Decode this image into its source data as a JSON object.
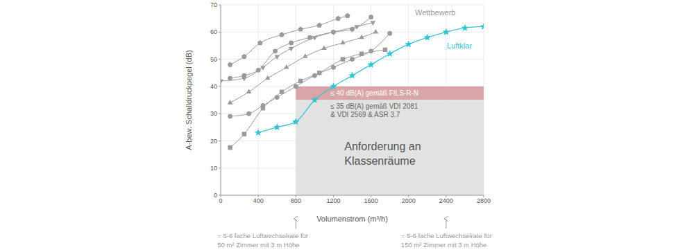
{
  "chart_data": {
    "type": "line",
    "x_label": "Volumenstrom (m³/h)",
    "y_label": "A-bew. Schalldruckpegel (dB)",
    "xlim": [
      0,
      2800
    ],
    "xticks": [
      0,
      400,
      800,
      1200,
      1600,
      2000,
      2400,
      2800
    ],
    "ylim": [
      0,
      70
    ],
    "yticks": [
      0,
      10,
      20,
      30,
      40,
      50,
      60,
      70
    ],
    "grid": true,
    "competitor_label": "Wettbewerb",
    "series": [
      {
        "color": "#9a9a9a",
        "marker": "pentagon",
        "x": [
          100,
          250,
          420,
          650,
          850,
          1050,
          1250,
          1350
        ],
        "values": [
          48,
          51,
          56,
          59,
          61,
          62.5,
          65,
          66
        ]
      },
      {
        "color": "#9a9a9a",
        "marker": "circle",
        "x": [
          100,
          250,
          400,
          580,
          750,
          950,
          1200,
          1400,
          1600
        ],
        "values": [
          43,
          44,
          46,
          53,
          56,
          58,
          60,
          61,
          65.5
        ]
      },
      {
        "color": "#9a9a9a",
        "marker": "triangle-down",
        "x": [
          0,
          250,
          450,
          600,
          750,
          1000,
          1200,
          1450,
          1620
        ],
        "values": [
          42,
          43,
          47,
          51,
          54,
          58,
          60,
          62,
          63.5
        ]
      },
      {
        "color": "#9a9a9a",
        "marker": "triangle",
        "x": [
          100,
          300,
          500,
          700,
          900,
          1100,
          1300,
          1500,
          1650
        ],
        "values": [
          34,
          38,
          43,
          47,
          51,
          54,
          56,
          58,
          60
        ]
      },
      {
        "color": "#9a9a9a",
        "marker": "square",
        "x": [
          100,
          250,
          450,
          650,
          850,
          1050,
          1300,
          1500,
          1750
        ],
        "values": [
          17.5,
          22.5,
          32,
          38,
          42,
          45,
          50,
          52,
          53.5
        ]
      },
      {
        "color": "#9a9a9a",
        "marker": "circle",
        "x": [
          100,
          300,
          450,
          600,
          800,
          1000,
          1200,
          1400,
          1600,
          1800
        ],
        "values": [
          29,
          30,
          33,
          36,
          40,
          44,
          47,
          50,
          53,
          59.5
        ]
      },
      {
        "name": "Luftklar",
        "color": "#35c3d3",
        "marker": "star",
        "x": [
          400,
          600,
          800,
          1000,
          1200,
          1400,
          1600,
          1800,
          2000,
          2200,
          2400,
          2600,
          2800
        ],
        "values": [
          23,
          25,
          27,
          35,
          40,
          44,
          48,
          52,
          55.5,
          58,
          60,
          61.5,
          62
        ]
      }
    ],
    "bands": [
      {
        "label_lines": [
          "≤ 40 dB(A) gemäß FILS-R-N"
        ],
        "x": [
          800,
          2800
        ],
        "y": [
          35,
          40
        ],
        "color": "#d8a6a6"
      },
      {
        "label_lines": [
          "≤ 35 dB(A) gemäß VDI 2081",
          "& VDI 2569 & ASR 3.7"
        ],
        "title_lines": [
          "Anforderung an",
          "Klassenräume"
        ],
        "x": [
          800,
          2800
        ],
        "y": [
          0,
          35
        ],
        "color": "#e2e2e2"
      }
    ],
    "x_notes": [
      {
        "x": 800,
        "lines": [
          "= 5-6 fache Luftwechselrate für",
          "50 m² Zimmer mit 3 m Höhe"
        ]
      },
      {
        "x": 2400,
        "lines": [
          "= 5-6 fache Luftwechselrate für",
          "150 m² Zimmer mit 3 m Höhe"
        ]
      }
    ]
  }
}
